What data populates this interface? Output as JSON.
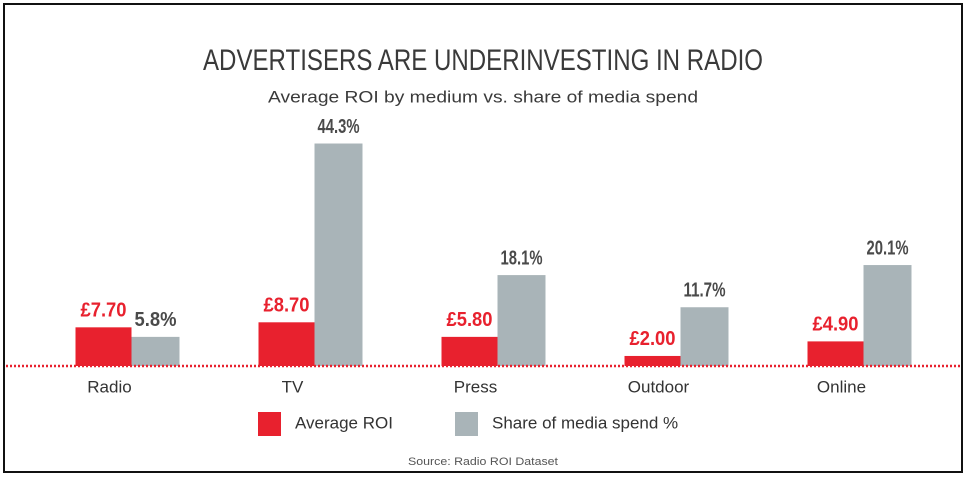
{
  "chart_data": {
    "type": "bar",
    "title": "ADVERTISERS ARE UNDERINVESTING IN RADIO",
    "subtitle": "Average ROI by medium vs. share of media spend",
    "source": "Source: Radio ROI Dataset",
    "categories": [
      "Radio",
      "TV",
      "Press",
      "Outdoor",
      "Online"
    ],
    "series": [
      {
        "name": "Average ROI",
        "color": "#e8212e",
        "values": [
          7.7,
          8.7,
          5.8,
          2.0,
          4.9
        ],
        "value_labels": [
          "£7.70",
          "£8.70",
          "£5.80",
          "£2.00",
          "£4.90"
        ]
      },
      {
        "name": "Share of media spend %",
        "color": "#a9b4b8",
        "values": [
          5.8,
          44.3,
          18.1,
          11.7,
          20.1
        ],
        "value_labels": [
          "5.8%",
          "44.3%",
          "18.1%",
          "11.7%",
          "20.1%"
        ]
      }
    ],
    "ylim": [
      0,
      45
    ]
  }
}
